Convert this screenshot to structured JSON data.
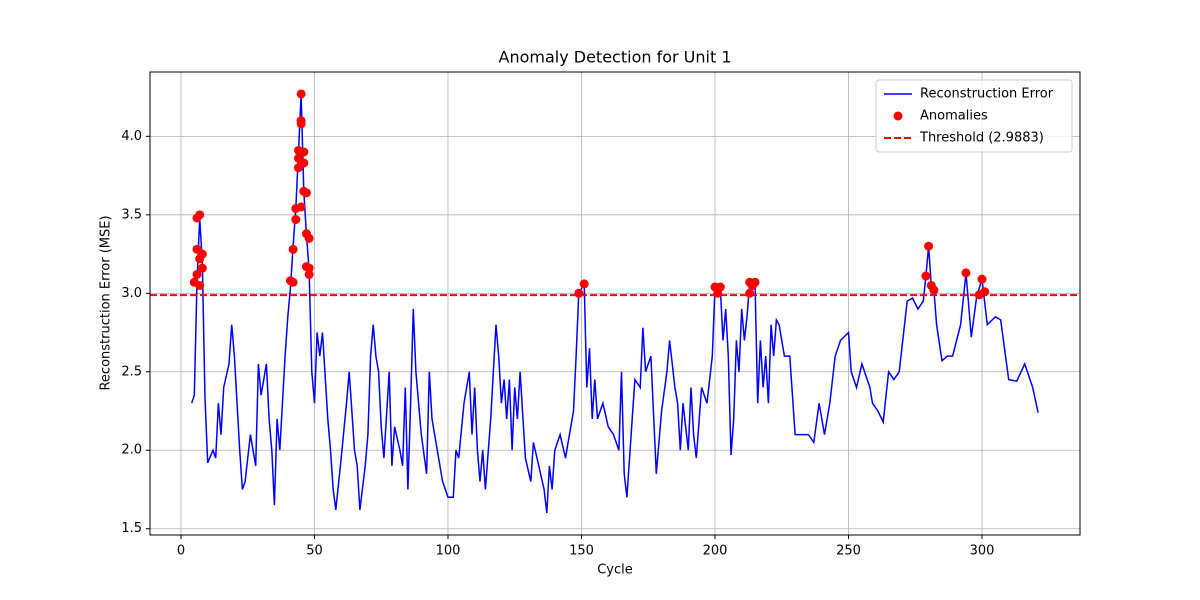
{
  "chart_data": {
    "type": "line",
    "title": "Anomaly Detection for Unit 1",
    "xlabel": "Cycle",
    "ylabel": "Reconstruction Error (MSE)",
    "xlim": [
      -11.6,
      336.7
    ],
    "ylim": [
      1.46,
      4.41
    ],
    "xticks": [
      0,
      50,
      100,
      150,
      200,
      250,
      300
    ],
    "yticks": [
      1.5,
      {
        "value": 2,
        "label": "2.0"
      },
      2.5,
      {
        "value": 3,
        "label": "3.0"
      },
      3.5,
      {
        "value": 4,
        "label": "4.0"
      }
    ],
    "grid": true,
    "legend": "upper right",
    "series": [
      {
        "name": "Reconstruction Error",
        "type": "line",
        "color": "#0000ff",
        "x": [
          4,
          5,
          6,
          7,
          8,
          9,
          10,
          12,
          13,
          14,
          15,
          16,
          18,
          19,
          20,
          22,
          23,
          24,
          26,
          28,
          29,
          30,
          32,
          33,
          34,
          35,
          36,
          37,
          39,
          40,
          41,
          42,
          43,
          44,
          45,
          46,
          47,
          48,
          49,
          50,
          51,
          52,
          53,
          55,
          56,
          57,
          58,
          60,
          62,
          63,
          65,
          66,
          67,
          69,
          70,
          71,
          72,
          73,
          74,
          75,
          76,
          78,
          79,
          80,
          82,
          83,
          84,
          85,
          86,
          87,
          88,
          90,
          92,
          93,
          94,
          96,
          98,
          100,
          102,
          103,
          104,
          106,
          108,
          109,
          110,
          111,
          112,
          113,
          114,
          116,
          118,
          119,
          120,
          121,
          122,
          123,
          124,
          125,
          126,
          127,
          129,
          131,
          132,
          134,
          136,
          137,
          138,
          139,
          140,
          142,
          144,
          145,
          147,
          148,
          149,
          151,
          152,
          153,
          154,
          155,
          156,
          158,
          160,
          162,
          164,
          165,
          166,
          167,
          169,
          170,
          172,
          173,
          174,
          176,
          178,
          180,
          182,
          183,
          185,
          186,
          187,
          188,
          190,
          191,
          192,
          193,
          195,
          197,
          199,
          200,
          201,
          202,
          203,
          204,
          205,
          206,
          207,
          208,
          209,
          210,
          211,
          212,
          213,
          214,
          215,
          216,
          217,
          218,
          219,
          220,
          221,
          222,
          223,
          224,
          226,
          228,
          230,
          232,
          235,
          237,
          239,
          241,
          243,
          245,
          247,
          250,
          251,
          253,
          255,
          258,
          259,
          261,
          263,
          265,
          267,
          269,
          272,
          274,
          276,
          278,
          279,
          280,
          281,
          282,
          283,
          285,
          287,
          289,
          292,
          294,
          296,
          298,
          300,
          302,
          305,
          307,
          310,
          313,
          316,
          319,
          321
        ],
        "values": [
          2.3,
          2.35,
          3.07,
          3.48,
          3.2,
          2.33,
          1.92,
          2.0,
          1.95,
          2.3,
          2.1,
          2.4,
          2.55,
          2.8,
          2.6,
          2.0,
          1.75,
          1.8,
          2.1,
          1.9,
          2.55,
          2.35,
          2.55,
          2.2,
          2.0,
          1.65,
          2.2,
          2.0,
          2.6,
          2.85,
          3.03,
          3.3,
          3.54,
          3.9,
          4.27,
          3.65,
          3.37,
          3.15,
          2.5,
          2.3,
          2.75,
          2.6,
          2.75,
          2.2,
          2.0,
          1.75,
          1.62,
          1.95,
          2.3,
          2.5,
          2.0,
          1.9,
          1.62,
          1.9,
          2.1,
          2.6,
          2.8,
          2.6,
          2.5,
          2.15,
          1.95,
          2.5,
          1.9,
          2.15,
          2.0,
          1.9,
          2.4,
          1.75,
          2.3,
          2.9,
          2.5,
          2.1,
          1.85,
          2.5,
          2.2,
          2.0,
          1.8,
          1.7,
          1.7,
          2.0,
          1.95,
          2.3,
          2.5,
          2.1,
          2.4,
          2.0,
          1.8,
          2.0,
          1.75,
          2.2,
          2.8,
          2.6,
          2.3,
          2.45,
          2.2,
          2.45,
          2.0,
          2.4,
          2.2,
          2.5,
          1.95,
          1.8,
          2.05,
          1.9,
          1.75,
          1.6,
          1.9,
          1.75,
          2.0,
          2.1,
          1.95,
          2.05,
          2.25,
          2.6,
          3.0,
          3.06,
          2.4,
          2.65,
          2.2,
          2.45,
          2.2,
          2.3,
          2.15,
          2.1,
          2.0,
          2.5,
          1.85,
          1.7,
          2.2,
          2.45,
          2.4,
          2.78,
          2.5,
          2.6,
          1.85,
          2.25,
          2.5,
          2.7,
          2.4,
          2.3,
          2.0,
          2.3,
          2.0,
          2.4,
          2.1,
          1.95,
          2.4,
          2.3,
          2.6,
          3.04,
          3.0,
          3.04,
          2.7,
          2.9,
          2.6,
          1.97,
          2.2,
          2.7,
          2.5,
          2.9,
          2.7,
          2.85,
          3.07,
          3.05,
          3.07,
          2.3,
          2.7,
          2.4,
          2.6,
          2.3,
          2.8,
          2.6,
          2.83,
          2.8,
          2.6,
          2.6,
          2.1,
          2.1,
          2.1,
          2.05,
          2.3,
          2.1,
          2.3,
          2.6,
          2.7,
          2.75,
          2.5,
          2.4,
          2.55,
          2.4,
          2.3,
          2.25,
          2.18,
          2.5,
          2.45,
          2.5,
          2.95,
          2.97,
          2.9,
          2.95,
          3.11,
          3.3,
          3.05,
          3.02,
          2.8,
          2.57,
          2.6,
          2.6,
          2.8,
          3.13,
          2.72,
          2.98,
          3.09,
          2.8,
          2.85,
          2.83,
          2.45,
          2.44,
          2.55,
          2.4,
          2.24
        ]
      },
      {
        "name": "Anomalies",
        "type": "scatter",
        "color": "#ff0000",
        "x": [
          5,
          6,
          6,
          6,
          7,
          7,
          7,
          8,
          8,
          41,
          42,
          42,
          43,
          43,
          44,
          44,
          44,
          45,
          45,
          45,
          45,
          46,
          46,
          46,
          47,
          47,
          47,
          48,
          48,
          48,
          149,
          151,
          200,
          201,
          202,
          213,
          213,
          214,
          215,
          279,
          280,
          281,
          282,
          294,
          299,
          300,
          301
        ],
        "values": [
          3.07,
          3.28,
          3.48,
          3.12,
          3.05,
          3.5,
          3.22,
          3.25,
          3.16,
          3.08,
          3.07,
          3.28,
          3.47,
          3.54,
          3.91,
          3.8,
          3.86,
          4.27,
          4.1,
          4.08,
          3.55,
          3.9,
          3.83,
          3.65,
          3.64,
          3.38,
          3.17,
          3.35,
          3.12,
          3.16,
          3.0,
          3.06,
          3.04,
          3.0,
          3.04,
          3.07,
          3.0,
          3.05,
          3.07,
          3.11,
          3.3,
          3.05,
          3.02,
          3.13,
          2.99,
          3.09,
          3.01
        ]
      }
    ],
    "threshold": {
      "value": 2.9883,
      "label": "Threshold (2.9883)",
      "color": "#ff0000"
    }
  }
}
